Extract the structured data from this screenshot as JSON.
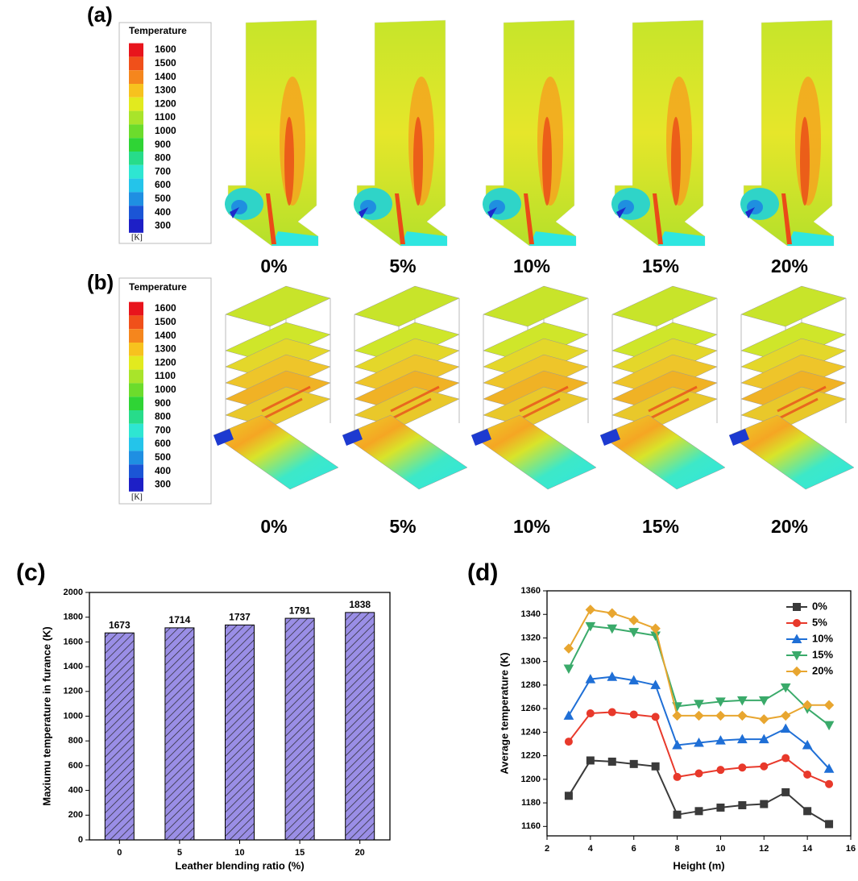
{
  "panel_a": {
    "label": "(a)",
    "legend_title": "Temperature",
    "legend_ticks": [
      1600,
      1500,
      1400,
      1300,
      1200,
      1100,
      1000,
      900,
      800,
      700,
      600,
      500,
      400,
      300
    ],
    "legend_unit": "[K]",
    "cases": [
      "0%",
      "5%",
      "10%",
      "15%",
      "20%"
    ]
  },
  "panel_b": {
    "label": "(b)",
    "legend_title": "Temperature",
    "legend_ticks": [
      1600,
      1500,
      1400,
      1300,
      1200,
      1100,
      1000,
      900,
      800,
      700,
      600,
      500,
      400,
      300
    ],
    "legend_unit": "[K]",
    "cases": [
      "0%",
      "5%",
      "10%",
      "15%",
      "20%"
    ]
  },
  "chart_data": [
    {
      "type": "bar",
      "panel_label": "(c)",
      "x_label": "Leather blending ratio (%)",
      "y_label": "Maxiumu temperature in furance (K)",
      "categories": [
        "0",
        "5",
        "10",
        "15",
        "20"
      ],
      "values": [
        1673,
        1714,
        1737,
        1791,
        1838
      ],
      "color": "#9a8ee6",
      "hatch": true,
      "ylim": [
        0,
        2000
      ],
      "yticks": [
        0,
        200,
        400,
        600,
        800,
        1000,
        1200,
        1400,
        1600,
        1800,
        2000
      ]
    },
    {
      "type": "line",
      "panel_label": "(d)",
      "x_label": "Height (m)",
      "y_label": "Average temperature (K)",
      "x": [
        3,
        4,
        5,
        6,
        7,
        8,
        9,
        10,
        11,
        12,
        13,
        14,
        15
      ],
      "xlim": [
        2,
        16
      ],
      "xticks": [
        2,
        4,
        6,
        8,
        10,
        12,
        14,
        16
      ],
      "ylim": [
        1152,
        1360
      ],
      "yticks": [
        1160,
        1180,
        1200,
        1220,
        1240,
        1260,
        1280,
        1300,
        1320,
        1340,
        1360
      ],
      "legend": "upper right",
      "series": [
        {
          "name": "0%",
          "color": "#3a3a3a",
          "marker": "square",
          "values": [
            1186,
            1216,
            1215,
            1213,
            1211,
            1170,
            1173,
            1176,
            1178,
            1179,
            1189,
            1173,
            1162
          ]
        },
        {
          "name": "5%",
          "color": "#e8392b",
          "marker": "circle",
          "values": [
            1232,
            1256,
            1257,
            1255,
            1253,
            1202,
            1205,
            1208,
            1210,
            1211,
            1218,
            1204,
            1196
          ]
        },
        {
          "name": "10%",
          "color": "#1f6fd6",
          "marker": "triangle-up",
          "values": [
            1254,
            1285,
            1287,
            1284,
            1280,
            1229,
            1231,
            1233,
            1234,
            1234,
            1243,
            1229,
            1209
          ]
        },
        {
          "name": "15%",
          "color": "#3aaa6a",
          "marker": "triangle-down",
          "values": [
            1294,
            1330,
            1328,
            1325,
            1322,
            1262,
            1264,
            1266,
            1267,
            1267,
            1278,
            1260,
            1246
          ]
        },
        {
          "name": "20%",
          "color": "#e8a630",
          "marker": "diamond",
          "values": [
            1311,
            1344,
            1341,
            1335,
            1328,
            1254,
            1254,
            1254,
            1254,
            1251,
            1254,
            1263,
            1263
          ]
        }
      ]
    }
  ]
}
